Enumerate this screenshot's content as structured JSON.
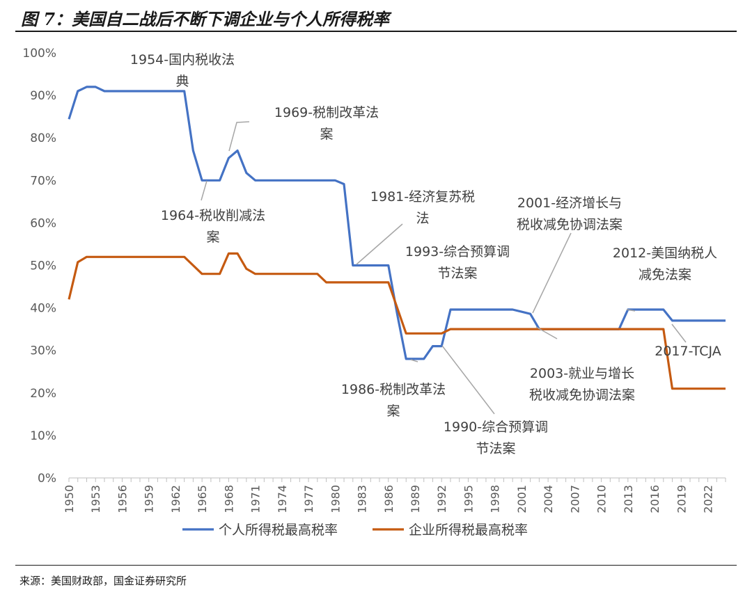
{
  "figure": {
    "title": "图 7：美国自二战后不断下调企业与个人所得税率",
    "source": "来源：美国财政部，国金证券研究所"
  },
  "chart_data": {
    "type": "line",
    "x_range": [
      1950,
      2023
    ],
    "ylim": [
      0,
      100
    ],
    "y_ticks": [
      0,
      10,
      20,
      30,
      40,
      50,
      60,
      70,
      80,
      90,
      100
    ],
    "y_tick_labels": [
      "0%",
      "10%",
      "20%",
      "30%",
      "40%",
      "50%",
      "60%",
      "70%",
      "80%",
      "90%",
      "100%"
    ],
    "x_ticks": [
      1950,
      1953,
      1956,
      1959,
      1962,
      1965,
      1968,
      1971,
      1974,
      1977,
      1980,
      1983,
      1986,
      1989,
      1992,
      1995,
      1998,
      2001,
      2004,
      2007,
      2010,
      2013,
      2016,
      2019,
      2022
    ],
    "x_tick_labels": [
      "1950",
      "1953",
      "1956",
      "1959",
      "1962",
      "1965",
      "1968",
      "1971",
      "1974",
      "1977",
      "1980",
      "1983",
      "1986",
      "1989",
      "1992",
      "1995",
      "1998",
      "2001",
      "2004",
      "2007",
      "2010",
      "2013",
      "2016",
      "2019",
      "2022"
    ],
    "series": [
      {
        "name": "个人所得税最高税率",
        "color": "#4472C4",
        "points": [
          [
            1950,
            84.4
          ],
          [
            1951,
            91
          ],
          [
            1952,
            92
          ],
          [
            1953,
            92
          ],
          [
            1954,
            91
          ],
          [
            1963,
            91
          ],
          [
            1964,
            77
          ],
          [
            1965,
            70
          ],
          [
            1967,
            70
          ],
          [
            1968,
            75.25
          ],
          [
            1969,
            77
          ],
          [
            1970,
            71.75
          ],
          [
            1971,
            70
          ],
          [
            1980,
            70
          ],
          [
            1981,
            69.13
          ],
          [
            1982,
            50
          ],
          [
            1986,
            50
          ],
          [
            1987,
            38.5
          ],
          [
            1988,
            28
          ],
          [
            1990,
            28
          ],
          [
            1991,
            31
          ],
          [
            1992,
            31
          ],
          [
            1993,
            39.6
          ],
          [
            2000,
            39.6
          ],
          [
            2001,
            39.1
          ],
          [
            2002,
            38.6
          ],
          [
            2003,
            35
          ],
          [
            2012,
            35
          ],
          [
            2013,
            39.6
          ],
          [
            2017,
            39.6
          ],
          [
            2018,
            37
          ],
          [
            2024,
            37
          ]
        ]
      },
      {
        "name": "企业所得税最高税率",
        "color": "#C55A11",
        "points": [
          [
            1950,
            42
          ],
          [
            1951,
            50.75
          ],
          [
            1952,
            52
          ],
          [
            1963,
            52
          ],
          [
            1964,
            50
          ],
          [
            1965,
            48
          ],
          [
            1967,
            48
          ],
          [
            1968,
            52.8
          ],
          [
            1969,
            52.8
          ],
          [
            1970,
            49.2
          ],
          [
            1971,
            48
          ],
          [
            1978,
            48
          ],
          [
            1979,
            46
          ],
          [
            1986,
            46
          ],
          [
            1987,
            40
          ],
          [
            1988,
            34
          ],
          [
            1992,
            34
          ],
          [
            1993,
            35
          ],
          [
            2017,
            35
          ],
          [
            2018,
            21
          ],
          [
            2024,
            21
          ]
        ]
      }
    ],
    "annotations": [
      {
        "lines": [
          "1954-国内税收法",
          "典"
        ]
      },
      {
        "lines": [
          "1969-税制改革法",
          "案"
        ]
      },
      {
        "lines": [
          "1964-税收削减法",
          "案"
        ]
      },
      {
        "lines": [
          "1981-经济复苏税",
          "法"
        ]
      },
      {
        "lines": [
          "2001-经济增长与",
          "税收减免协调法案"
        ]
      },
      {
        "lines": [
          "1993-综合预算调",
          "节法案"
        ]
      },
      {
        "lines": [
          "2012-美国纳税人",
          "减免法案"
        ]
      },
      {
        "lines": [
          "2017-TCJA"
        ]
      },
      {
        "lines": [
          "2003-就业与增长",
          "税收减免协调法案"
        ]
      },
      {
        "lines": [
          "1986-税制改革法",
          "案"
        ]
      },
      {
        "lines": [
          "1990-综合预算调",
          "节法案"
        ]
      }
    ],
    "legend": {
      "position": "bottom",
      "items": [
        "个人所得税最高税率",
        "企业所得税最高税率"
      ]
    }
  }
}
